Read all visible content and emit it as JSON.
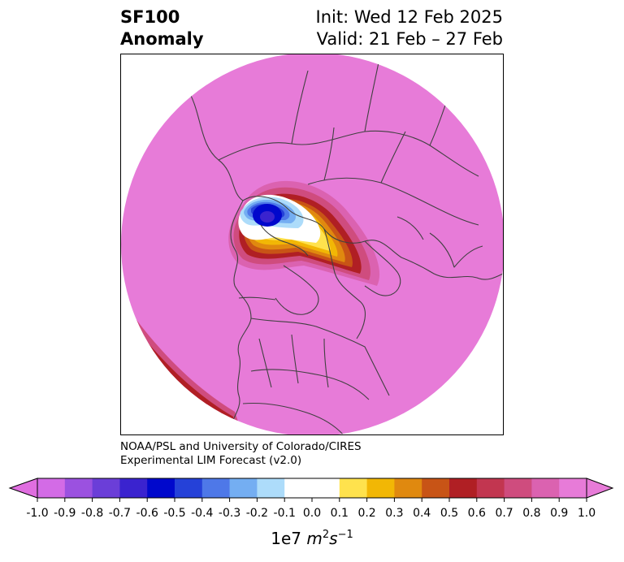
{
  "title": {
    "variable": "SF100",
    "subtitle": "Anomaly",
    "init": "Init: Wed 12 Feb 2025",
    "valid": "Valid: 21 Feb – 27 Feb"
  },
  "credit": {
    "line1": "NOAA/PSL and University of Colorado/CIRES",
    "line2": "Experimental LIM Forecast (v2.0)"
  },
  "colorbar": {
    "ticks": [
      "-1.0",
      "-0.9",
      "-0.8",
      "-0.7",
      "-0.6",
      "-0.5",
      "-0.4",
      "-0.3",
      "-0.2",
      "-0.1",
      "0.0",
      "0.1",
      "0.2",
      "0.3",
      "0.4",
      "0.5",
      "0.6",
      "0.7",
      "0.8",
      "0.9",
      "1.0"
    ],
    "colors": [
      "#d36be6",
      "#9b51e0",
      "#6b3ed8",
      "#3a23cf",
      "#0008cc",
      "#2541d8",
      "#4e78e8",
      "#74aef2",
      "#addcfa",
      "#ffffff",
      "#ffffff",
      "#ffe24d",
      "#f2b705",
      "#e0890f",
      "#c85416",
      "#b01f24",
      "#c23650",
      "#cf4c7e",
      "#db62b0",
      "#e77bd8"
    ],
    "under_color": "#e06ee0",
    "over_color": "#e77bd8",
    "label_prefix": "1e7 ",
    "label_unit": "m",
    "label_exp1": "2",
    "label_unit2": "s",
    "label_exp2": "−1"
  },
  "map": {
    "projection": "north polar stereographic",
    "background_anomaly_color": "#e77bd8",
    "features": [
      "coastlines",
      "country borders",
      "state/province borders"
    ]
  }
}
